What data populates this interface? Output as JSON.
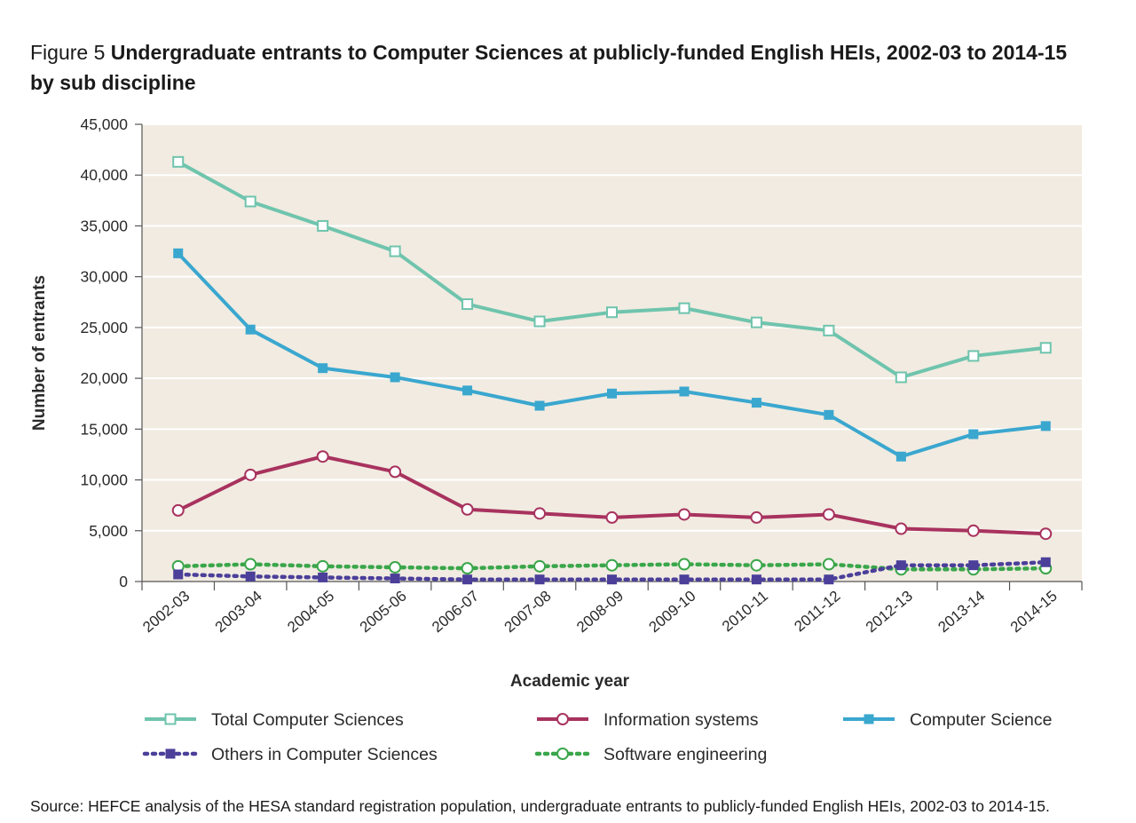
{
  "title": {
    "label": "Figure 5",
    "text": "Undergraduate entrants to Computer Sciences at publicly-funded English HEIs, 2002-03 to 2014-15 by sub discipline"
  },
  "source": "Source: HEFCE analysis of the HESA standard registration population, undergraduate entrants to publicly-funded English HEIs, 2002-03 to 2014-15.",
  "colors": {
    "plot_background": "#f1ebe1",
    "gridline": "#ffffff",
    "axis": "#555555"
  },
  "chart_data": {
    "type": "line",
    "title": "Undergraduate entrants to Computer Sciences at publicly-funded English HEIs, 2002-03 to 2014-15 by sub discipline",
    "xlabel": "Academic year",
    "ylabel": "Number of entrants",
    "ylim": [
      0,
      45000
    ],
    "yticks": [
      0,
      5000,
      10000,
      15000,
      20000,
      25000,
      30000,
      35000,
      40000,
      45000
    ],
    "ytick_labels": [
      "0",
      "5,000",
      "10,000",
      "15,000",
      "20,000",
      "25,000",
      "30,000",
      "35,000",
      "40,000",
      "45,000"
    ],
    "grid": true,
    "legend_position": "bottom",
    "categories": [
      "2002-03",
      "2003-04",
      "2004-05",
      "2005-06",
      "2006-07",
      "2007-08",
      "2008-09",
      "2009-10",
      "2010-11",
      "2011-12",
      "2012-13",
      "2013-14",
      "2014-15"
    ],
    "series": [
      {
        "name": "Total Computer Sciences",
        "color": "#6fc4ad",
        "marker": "square-open",
        "dash": "solid",
        "values": [
          41300,
          37400,
          35000,
          32500,
          27300,
          25600,
          26500,
          26900,
          25500,
          24700,
          20100,
          22200,
          23000
        ]
      },
      {
        "name": "Information systems",
        "color": "#a8325e",
        "marker": "circle-open",
        "dash": "solid",
        "values": [
          7000,
          10500,
          12300,
          10800,
          7100,
          6700,
          6300,
          6600,
          6300,
          6600,
          5200,
          5000,
          4700
        ]
      },
      {
        "name": "Computer Science",
        "color": "#3aa7cf",
        "marker": "square-filled",
        "dash": "solid",
        "values": [
          32300,
          24800,
          21000,
          20100,
          18800,
          17300,
          18500,
          18700,
          17600,
          16400,
          12300,
          14500,
          15300
        ]
      },
      {
        "name": "Others in Computer Sciences",
        "color": "#4b3f9a",
        "marker": "square-filled",
        "dash": "dotted",
        "values": [
          700,
          500,
          400,
          300,
          200,
          200,
          200,
          200,
          200,
          200,
          1600,
          1600,
          1900
        ]
      },
      {
        "name": "Software engineering",
        "color": "#3aa64a",
        "marker": "circle-open",
        "dash": "dotted",
        "values": [
          1500,
          1700,
          1500,
          1400,
          1300,
          1500,
          1600,
          1700,
          1600,
          1700,
          1200,
          1200,
          1300
        ]
      }
    ]
  }
}
